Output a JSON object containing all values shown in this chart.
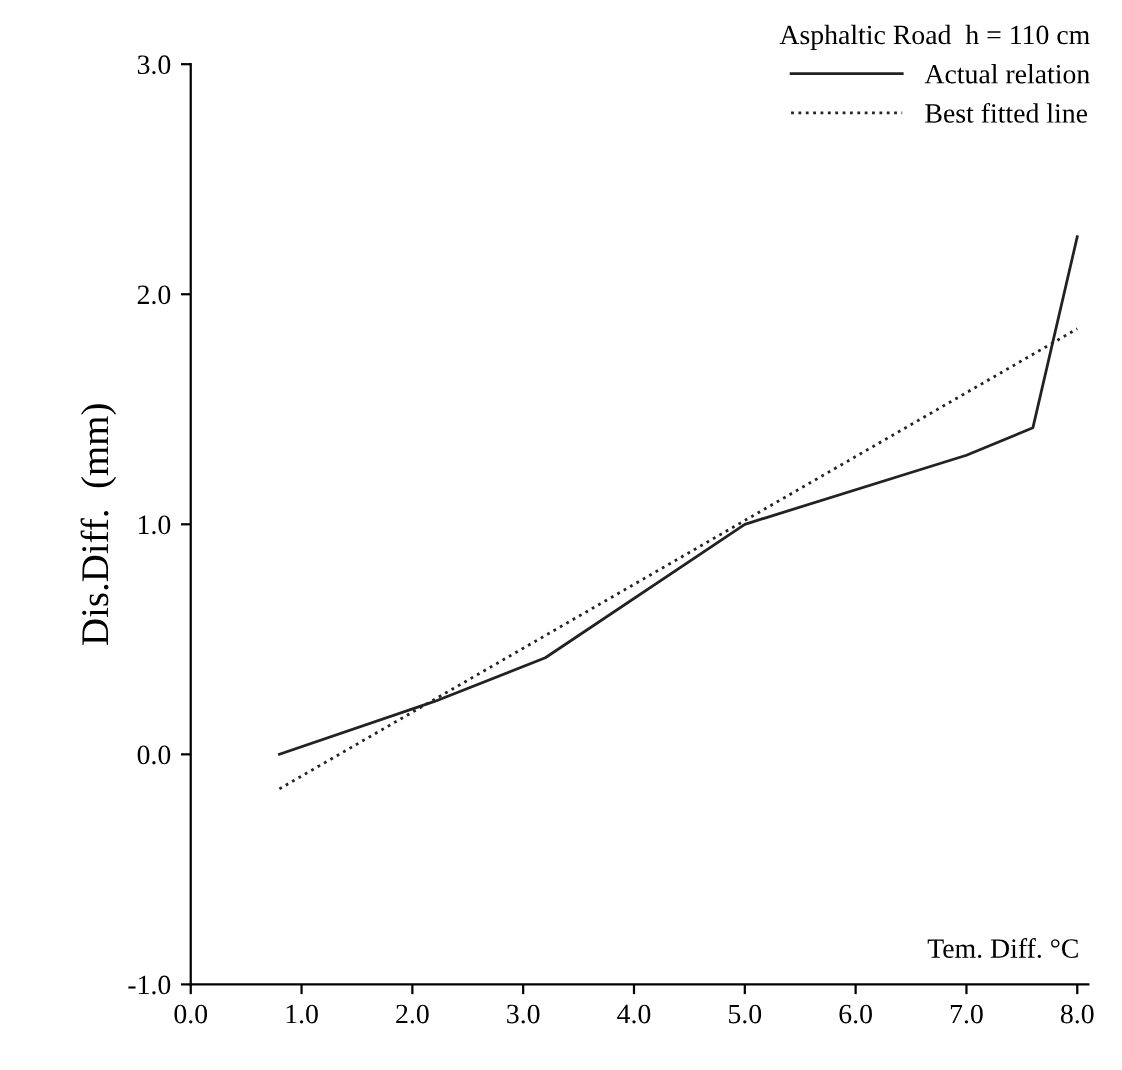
{
  "chart_data": {
    "type": "line",
    "legend_title": "Asphaltic Road  h = 110 cm",
    "xlabel": "Tem. Diff. °C",
    "ylabel": "Dis.Diff.  (mm)",
    "series": [
      {
        "name": "Actual relation",
        "color": "#222222",
        "line_style": "solid",
        "x": [
          0.8,
          2.2,
          3.2,
          5.0,
          7.0,
          7.6,
          8.0
        ],
        "values": [
          0.0,
          0.23,
          0.42,
          1.0,
          1.3,
          1.42,
          2.25
        ]
      },
      {
        "name": "Best fitted line",
        "color": "#222222",
        "line_style": "dotted",
        "x": [
          0.8,
          8.0
        ],
        "values": [
          -0.15,
          1.85
        ]
      }
    ],
    "xlim": [
      0,
      8.1
    ],
    "ylim": [
      -1.0,
      3.0
    ],
    "xticks": [
      {
        "value": 0,
        "label": "0.0"
      },
      {
        "value": 1,
        "label": "1.0"
      },
      {
        "value": 2,
        "label": "2.0"
      },
      {
        "value": 3,
        "label": "3.0"
      },
      {
        "value": 4,
        "label": "4.0"
      },
      {
        "value": 5,
        "label": "5.0"
      },
      {
        "value": 6,
        "label": "6.0"
      },
      {
        "value": 7,
        "label": "7.0"
      },
      {
        "value": 8,
        "label": "8.0"
      }
    ],
    "yticks": [
      {
        "value": -1,
        "label": "-1.0"
      },
      {
        "value": 0,
        "label": "0.0"
      },
      {
        "value": 1,
        "label": "1.0"
      },
      {
        "value": 2,
        "label": "2.0"
      },
      {
        "value": 3,
        "label": "3.0"
      }
    ],
    "grid": false,
    "legend": "top right",
    "marker": "none"
  }
}
